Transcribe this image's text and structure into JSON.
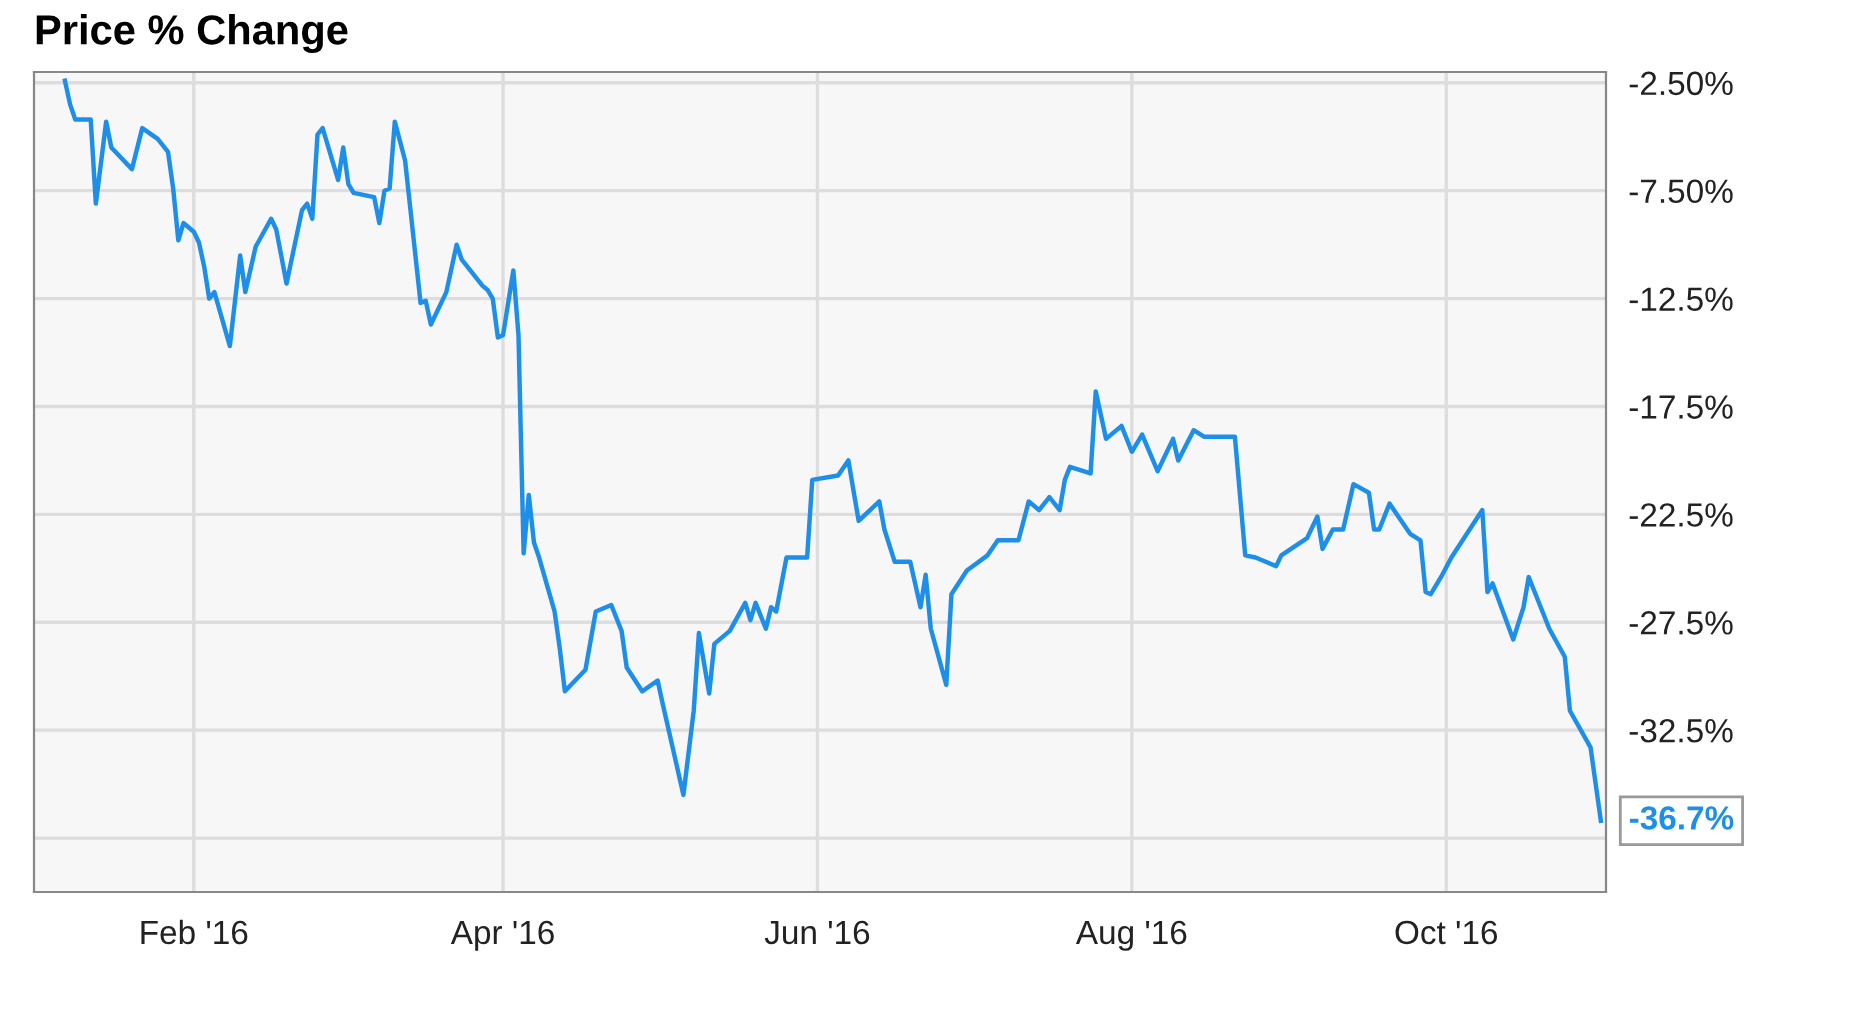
{
  "chart_data": {
    "type": "line",
    "title": "Price % Change",
    "x": [
      "2016-01-07",
      "2016-01-08",
      "2016-01-09",
      "2016-01-12",
      "2016-01-13",
      "2016-01-15",
      "2016-01-16",
      "2016-01-20",
      "2016-01-22",
      "2016-01-25",
      "2016-01-27",
      "2016-01-28",
      "2016-01-29",
      "2016-01-30",
      "2016-02-01",
      "2016-02-02",
      "2016-02-03",
      "2016-02-04",
      "2016-02-05",
      "2016-02-08",
      "2016-02-10",
      "2016-02-11",
      "2016-02-13",
      "2016-02-16",
      "2016-02-17",
      "2016-02-19",
      "2016-02-22",
      "2016-02-23",
      "2016-02-24",
      "2016-02-25",
      "2016-02-26",
      "2016-02-29",
      "2016-03-01",
      "2016-03-02",
      "2016-03-03",
      "2016-03-07",
      "2016-03-08",
      "2016-03-09",
      "2016-03-10",
      "2016-03-11",
      "2016-03-13",
      "2016-03-16",
      "2016-03-17",
      "2016-03-18",
      "2016-03-21",
      "2016-03-23",
      "2016-03-24",
      "2016-03-28",
      "2016-03-29",
      "2016-03-30",
      "2016-03-31",
      "2016-04-01",
      "2016-04-03",
      "2016-04-04",
      "2016-04-05",
      "2016-04-06",
      "2016-04-07",
      "2016-04-08",
      "2016-04-11",
      "2016-04-12",
      "2016-04-13",
      "2016-04-17",
      "2016-04-19",
      "2016-04-22",
      "2016-04-24",
      "2016-04-25",
      "2016-04-28",
      "2016-05-01",
      "2016-05-02",
      "2016-05-06",
      "2016-05-08",
      "2016-05-09",
      "2016-05-11",
      "2016-05-12",
      "2016-05-15",
      "2016-05-18",
      "2016-05-19",
      "2016-05-20",
      "2016-05-22",
      "2016-05-23",
      "2016-05-24",
      "2016-05-26",
      "2016-05-30",
      "2016-05-31",
      "2016-06-05",
      "2016-06-07",
      "2016-06-09",
      "2016-06-13",
      "2016-06-14",
      "2016-06-16",
      "2016-06-19",
      "2016-06-21",
      "2016-06-22",
      "2016-06-23",
      "2016-06-26",
      "2016-06-27",
      "2016-06-30",
      "2016-07-04",
      "2016-07-06",
      "2016-07-10",
      "2016-07-12",
      "2016-07-14",
      "2016-07-16",
      "2016-07-18",
      "2016-07-19",
      "2016-07-20",
      "2016-07-24",
      "2016-07-25",
      "2016-07-27",
      "2016-07-30",
      "2016-08-01",
      "2016-08-03",
      "2016-08-06",
      "2016-08-09",
      "2016-08-10",
      "2016-08-13",
      "2016-08-15",
      "2016-08-20",
      "2016-08-21",
      "2016-08-23",
      "2016-08-25",
      "2016-08-29",
      "2016-08-30",
      "2016-09-04",
      "2016-09-06",
      "2016-09-07",
      "2016-09-09",
      "2016-09-11",
      "2016-09-13",
      "2016-09-16",
      "2016-09-17",
      "2016-09-18",
      "2016-09-20",
      "2016-09-22",
      "2016-09-24",
      "2016-09-26",
      "2016-09-27",
      "2016-09-28",
      "2016-09-30",
      "2016-10-02",
      "2016-10-08",
      "2016-10-09",
      "2016-10-10",
      "2016-10-12",
      "2016-10-14",
      "2016-10-16",
      "2016-10-17",
      "2016-10-21",
      "2016-10-24",
      "2016-10-25",
      "2016-10-29",
      "2016-10-31"
    ],
    "series": [
      {
        "color": "#1e8fe8",
        "values": [
          -2.4,
          -3.5,
          -4.2,
          -4.2,
          -8.1,
          -4.3,
          -5.5,
          -6.5,
          -4.6,
          -5.1,
          -5.7,
          -7.4,
          -9.8,
          -9.0,
          -9.4,
          -9.9,
          -11.0,
          -12.5,
          -12.2,
          -14.7,
          -10.5,
          -12.2,
          -10.1,
          -8.8,
          -9.3,
          -11.8,
          -8.4,
          -8.1,
          -8.8,
          -4.9,
          -4.6,
          -7.0,
          -5.5,
          -7.2,
          -7.6,
          -7.8,
          -9.0,
          -7.5,
          -7.4,
          -4.3,
          -6.1,
          -12.7,
          -12.6,
          -13.7,
          -12.2,
          -10.0,
          -10.7,
          -11.9,
          -12.1,
          -12.5,
          -14.3,
          -14.2,
          -11.2,
          -14.2,
          -24.3,
          -21.6,
          -23.8,
          -24.5,
          -27.0,
          -28.7,
          -30.7,
          -29.7,
          -27.0,
          -26.7,
          -27.9,
          -29.6,
          -30.7,
          -30.2,
          -31.3,
          -35.5,
          -31.6,
          -28.0,
          -30.8,
          -28.5,
          -27.9,
          -26.6,
          -27.4,
          -26.6,
          -27.8,
          -26.8,
          -27.0,
          -24.5,
          -24.5,
          -20.9,
          -20.7,
          -20.0,
          -22.8,
          -21.9,
          -23.2,
          -24.7,
          -24.7,
          -26.8,
          -25.3,
          -27.8,
          -30.4,
          -26.2,
          -25.1,
          -24.4,
          -23.7,
          -23.7,
          -21.9,
          -22.3,
          -21.7,
          -22.3,
          -20.9,
          -20.3,
          -20.6,
          -16.8,
          -19.0,
          -18.4,
          -19.6,
          -18.8,
          -20.5,
          -19.0,
          -20.0,
          -18.6,
          -18.9,
          -18.9,
          -18.9,
          -24.4,
          -24.5,
          -24.9,
          -24.4,
          -23.6,
          -22.6,
          -24.1,
          -23.2,
          -23.2,
          -21.1,
          -21.5,
          -23.2,
          -23.2,
          -22.0,
          -22.7,
          -23.4,
          -23.7,
          -26.1,
          -26.2,
          -25.4,
          -24.5,
          -22.3,
          -26.1,
          -25.7,
          -27.0,
          -28.3,
          -26.8,
          -25.4,
          -27.8,
          -29.1,
          -31.6,
          -33.3,
          -36.7
        ]
      }
    ],
    "xlim": [
      "2016-01-01",
      "2016-11-01"
    ],
    "xticks": [
      {
        "value": "2016-02-01",
        "label": "Feb '16"
      },
      {
        "value": "2016-04-01",
        "label": "Apr '16"
      },
      {
        "value": "2016-06-01",
        "label": "Jun '16"
      },
      {
        "value": "2016-08-01",
        "label": "Aug '16"
      },
      {
        "value": "2016-10-01",
        "label": "Oct '16"
      }
    ],
    "ylim": [
      -40,
      -2
    ],
    "yticks": [
      {
        "value": -2.5,
        "label": "-2.50%"
      },
      {
        "value": -7.5,
        "label": "-7.50%"
      },
      {
        "value": -12.5,
        "label": "-12.5%"
      },
      {
        "value": -17.5,
        "label": "-17.5%"
      },
      {
        "value": -22.5,
        "label": "-22.5%"
      },
      {
        "value": -27.5,
        "label": "-27.5%"
      },
      {
        "value": -32.5,
        "label": "-32.5%"
      },
      {
        "value": -37.5,
        "label": null
      }
    ],
    "annotations": [
      {
        "text": "-36.7%",
        "x": "2016-10-31",
        "y": -36.7
      }
    ],
    "grid": true,
    "legend": false,
    "marker": "none",
    "line_style": "solid"
  }
}
